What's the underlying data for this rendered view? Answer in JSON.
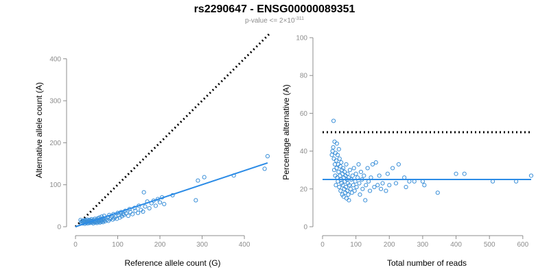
{
  "title": "rs2290647 - ENSG00000089351",
  "subtitle": {
    "prefix": "p-value <= 2",
    "times": "×",
    "base": "10",
    "exponent": "-311"
  },
  "colors": {
    "points": "#3a8fd8",
    "fit_line": "#2b8be6",
    "reference_line": "#000000",
    "axis": "#8c8c8c"
  },
  "chart_data": [
    {
      "type": "scatter",
      "xlabel": "Reference allele count (G)",
      "ylabel": "Alternative allele count (A)",
      "xlim": [
        0,
        460
      ],
      "ylim": [
        0,
        460
      ],
      "xticks": [
        0,
        100,
        200,
        300,
        400
      ],
      "yticks": [
        0,
        100,
        200,
        300,
        400
      ],
      "reference_line": {
        "style": "dotted",
        "from": [
          0,
          0
        ],
        "to": [
          460,
          460
        ]
      },
      "fit_line": {
        "from": [
          0,
          0
        ],
        "to": [
          455,
          152
        ]
      },
      "points": [
        [
          12,
          16
        ],
        [
          14,
          10
        ],
        [
          15,
          13
        ],
        [
          17,
          8
        ],
        [
          18,
          12
        ],
        [
          19,
          15
        ],
        [
          20,
          10
        ],
        [
          21,
          14
        ],
        [
          22,
          7
        ],
        [
          23,
          12
        ],
        [
          24,
          16
        ],
        [
          25,
          9
        ],
        [
          26,
          13
        ],
        [
          27,
          11
        ],
        [
          28,
          17
        ],
        [
          29,
          8
        ],
        [
          30,
          12
        ],
        [
          31,
          14
        ],
        [
          32,
          10
        ],
        [
          33,
          16
        ],
        [
          34,
          9
        ],
        [
          35,
          13
        ],
        [
          36,
          11
        ],
        [
          37,
          15
        ],
        [
          38,
          18
        ],
        [
          39,
          10
        ],
        [
          40,
          12
        ],
        [
          41,
          14
        ],
        [
          42,
          8
        ],
        [
          43,
          16
        ],
        [
          44,
          11
        ],
        [
          45,
          13
        ],
        [
          46,
          19
        ],
        [
          47,
          10
        ],
        [
          48,
          15
        ],
        [
          49,
          12
        ],
        [
          50,
          17
        ],
        [
          51,
          9
        ],
        [
          52,
          14
        ],
        [
          53,
          20
        ],
        [
          54,
          11
        ],
        [
          55,
          16
        ],
        [
          56,
          13
        ],
        [
          57,
          22
        ],
        [
          58,
          10
        ],
        [
          59,
          15
        ],
        [
          60,
          18
        ],
        [
          61,
          12
        ],
        [
          62,
          24
        ],
        [
          63,
          14
        ],
        [
          64,
          17
        ],
        [
          65,
          11
        ],
        [
          66,
          20
        ],
        [
          67,
          15
        ],
        [
          68,
          26
        ],
        [
          70,
          13
        ],
        [
          72,
          19
        ],
        [
          74,
          16
        ],
        [
          76,
          22
        ],
        [
          78,
          14
        ],
        [
          80,
          28
        ],
        [
          82,
          18
        ],
        [
          84,
          21
        ],
        [
          86,
          25
        ],
        [
          88,
          17
        ],
        [
          90,
          30
        ],
        [
          92,
          20
        ],
        [
          95,
          24
        ],
        [
          98,
          19
        ],
        [
          100,
          33
        ],
        [
          102,
          27
        ],
        [
          105,
          22
        ],
        [
          108,
          35
        ],
        [
          110,
          25
        ],
        [
          112,
          30
        ],
        [
          115,
          28
        ],
        [
          118,
          38
        ],
        [
          120,
          32
        ],
        [
          125,
          26
        ],
        [
          128,
          42
        ],
        [
          130,
          35
        ],
        [
          135,
          30
        ],
        [
          140,
          45
        ],
        [
          142,
          38
        ],
        [
          148,
          33
        ],
        [
          150,
          50
        ],
        [
          155,
          40
        ],
        [
          160,
          36
        ],
        [
          162,
          82
        ],
        [
          165,
          48
        ],
        [
          170,
          60
        ],
        [
          175,
          44
        ],
        [
          180,
          56
        ],
        [
          185,
          62
        ],
        [
          190,
          50
        ],
        [
          195,
          66
        ],
        [
          200,
          58
        ],
        [
          205,
          70
        ],
        [
          210,
          54
        ],
        [
          230,
          75
        ],
        [
          285,
          63
        ],
        [
          290,
          110
        ],
        [
          305,
          118
        ],
        [
          375,
          122
        ],
        [
          448,
          138
        ],
        [
          455,
          168
        ]
      ]
    },
    {
      "type": "scatter",
      "xlabel": "Total number of reads",
      "ylabel": "Percentage alternative (A)",
      "xlim": [
        0,
        625
      ],
      "ylim": [
        0,
        100
      ],
      "xticks": [
        0,
        100,
        200,
        300,
        400,
        500,
        600
      ],
      "yticks": [
        0,
        20,
        40,
        60,
        80,
        100
      ],
      "reference_line": {
        "style": "dotted",
        "y": 50
      },
      "fit_line": {
        "y": 25
      },
      "points": [
        [
          28,
          38
        ],
        [
          30,
          40
        ],
        [
          32,
          42
        ],
        [
          33,
          56
        ],
        [
          34,
          36
        ],
        [
          35,
          30
        ],
        [
          36,
          45
        ],
        [
          37,
          33
        ],
        [
          38,
          27
        ],
        [
          39,
          39
        ],
        [
          40,
          22
        ],
        [
          41,
          35
        ],
        [
          42,
          31
        ],
        [
          43,
          44
        ],
        [
          44,
          26
        ],
        [
          45,
          38
        ],
        [
          46,
          24
        ],
        [
          47,
          33
        ],
        [
          48,
          29
        ],
        [
          49,
          41
        ],
        [
          50,
          21
        ],
        [
          51,
          36
        ],
        [
          52,
          27
        ],
        [
          53,
          32
        ],
        [
          54,
          19
        ],
        [
          55,
          25
        ],
        [
          56,
          34
        ],
        [
          57,
          23
        ],
        [
          58,
          30
        ],
        [
          59,
          17
        ],
        [
          60,
          28
        ],
        [
          61,
          22
        ],
        [
          62,
          31
        ],
        [
          63,
          16
        ],
        [
          64,
          26
        ],
        [
          65,
          20
        ],
        [
          66,
          29
        ],
        [
          67,
          24
        ],
        [
          68,
          18
        ],
        [
          69,
          27
        ],
        [
          70,
          21
        ],
        [
          71,
          33
        ],
        [
          72,
          15
        ],
        [
          73,
          25
        ],
        [
          74,
          19
        ],
        [
          75,
          28
        ],
        [
          76,
          23
        ],
        [
          77,
          17
        ],
        [
          78,
          26
        ],
        [
          79,
          14
        ],
        [
          80,
          22
        ],
        [
          82,
          30
        ],
        [
          84,
          20
        ],
        [
          86,
          25
        ],
        [
          88,
          18
        ],
        [
          90,
          27
        ],
        [
          92,
          22
        ],
        [
          94,
          31
        ],
        [
          96,
          19
        ],
        [
          98,
          24
        ],
        [
          100,
          28
        ],
        [
          102,
          21
        ],
        [
          105,
          26
        ],
        [
          108,
          33
        ],
        [
          110,
          23
        ],
        [
          112,
          17
        ],
        [
          115,
          29
        ],
        [
          118,
          25
        ],
        [
          120,
          20
        ],
        [
          124,
          27
        ],
        [
          128,
          14
        ],
        [
          130,
          22
        ],
        [
          135,
          31
        ],
        [
          138,
          24
        ],
        [
          142,
          19
        ],
        [
          145,
          26
        ],
        [
          150,
          33
        ],
        [
          155,
          21
        ],
        [
          160,
          34
        ],
        [
          165,
          22
        ],
        [
          170,
          27
        ],
        [
          175,
          20
        ],
        [
          180,
          23
        ],
        [
          190,
          19
        ],
        [
          195,
          28
        ],
        [
          200,
          22
        ],
        [
          210,
          31
        ],
        [
          220,
          23
        ],
        [
          228,
          33
        ],
        [
          245,
          26
        ],
        [
          250,
          21
        ],
        [
          260,
          24
        ],
        [
          275,
          24
        ],
        [
          300,
          24
        ],
        [
          305,
          22
        ],
        [
          345,
          18
        ],
        [
          400,
          28
        ],
        [
          425,
          28
        ],
        [
          510,
          24
        ],
        [
          580,
          24
        ],
        [
          625,
          27
        ]
      ]
    }
  ]
}
